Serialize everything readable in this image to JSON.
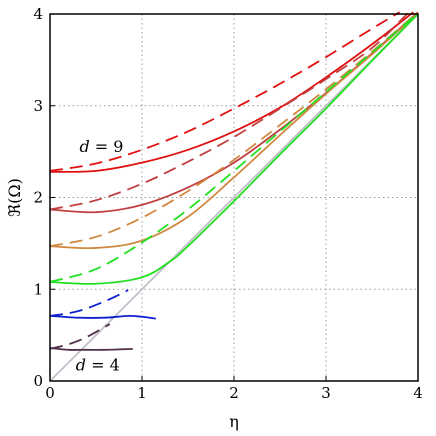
{
  "chart_data": {
    "type": "line",
    "xlabel": "η",
    "ylabel": "ℜ(Ω)",
    "xlim": [
      0,
      4
    ],
    "ylim": [
      0,
      4
    ],
    "xticks": [
      "0",
      "1",
      "2",
      "3",
      "4"
    ],
    "yticks": [
      "0",
      "1",
      "2",
      "3",
      "4"
    ],
    "grid": true,
    "grid_style": "dotted",
    "annotations": [
      {
        "var": "d",
        "eq": " = 9",
        "x": 0.32,
        "y": 2.55
      },
      {
        "var": "d",
        "eq": " = 4",
        "x": 0.28,
        "y": 0.17
      }
    ],
    "series": [
      {
        "color": "#c0c0c8",
        "dash": false,
        "x": [
          0,
          0.5,
          1.0,
          1.5,
          2.0,
          2.5,
          3.0,
          3.5,
          4.0
        ],
        "y": [
          0,
          0.5,
          1.0,
          1.5,
          2.0,
          2.5,
          3.0,
          3.5,
          4.0
        ]
      },
      {
        "color": "#e01010",
        "dash": true,
        "x": [
          0,
          0.5,
          1.0,
          1.5,
          2.0,
          2.5,
          3.0,
          3.5,
          3.8
        ],
        "y": [
          2.29,
          2.37,
          2.52,
          2.72,
          2.97,
          3.24,
          3.53,
          3.84,
          4.02
        ]
      },
      {
        "color": "#e01010",
        "dash": false,
        "x": [
          0,
          0.5,
          1.0,
          1.5,
          2.0,
          2.5,
          3.0,
          3.5,
          3.95
        ],
        "y": [
          2.28,
          2.29,
          2.38,
          2.52,
          2.72,
          2.98,
          3.31,
          3.67,
          4.02
        ]
      },
      {
        "color": "#c04040",
        "dash": true,
        "x": [
          0,
          0.5,
          1.0,
          1.5,
          2.0,
          2.5,
          3.0,
          3.5,
          3.9
        ],
        "y": [
          1.87,
          1.97,
          2.15,
          2.39,
          2.66,
          2.97,
          3.29,
          3.63,
          4.02
        ]
      },
      {
        "color": "#c04040",
        "dash": false,
        "x": [
          0,
          0.5,
          1.0,
          1.5,
          2.0,
          2.5,
          3.0,
          3.5,
          4.0
        ],
        "y": [
          1.87,
          1.84,
          1.92,
          2.11,
          2.38,
          2.74,
          3.14,
          3.57,
          4.02
        ]
      },
      {
        "color": "#d08840",
        "dash": true,
        "x": [
          0,
          0.5,
          1.0,
          1.5,
          2.0,
          2.5,
          3.0,
          3.5,
          4.0
        ],
        "y": [
          1.47,
          1.57,
          1.78,
          2.07,
          2.41,
          2.79,
          3.18,
          3.59,
          4.02
        ]
      },
      {
        "color": "#d08840",
        "dash": false,
        "x": [
          0,
          0.5,
          1.0,
          1.5,
          2.0,
          2.5,
          3.0,
          3.5,
          4.0
        ],
        "y": [
          1.47,
          1.45,
          1.53,
          1.79,
          2.22,
          2.68,
          3.13,
          3.56,
          4.01
        ]
      },
      {
        "color": "#20e020",
        "dash": true,
        "x": [
          0,
          0.5,
          1.0,
          1.5,
          2.0,
          2.5,
          3.0,
          3.5,
          4.0
        ],
        "y": [
          1.08,
          1.22,
          1.51,
          1.87,
          2.29,
          2.72,
          3.15,
          3.58,
          4.01
        ]
      },
      {
        "color": "#20e020",
        "dash": false,
        "x": [
          0,
          0.5,
          1.0,
          1.3,
          1.5,
          2.0,
          2.5,
          3.0,
          3.5,
          4.0
        ],
        "y": [
          1.08,
          1.06,
          1.13,
          1.3,
          1.47,
          1.96,
          2.47,
          2.97,
          3.49,
          4.0
        ]
      },
      {
        "color": "#1020d0",
        "dash": true,
        "x": [
          0,
          0.3,
          0.6,
          0.85
        ],
        "y": [
          0.71,
          0.76,
          0.87,
          0.99
        ]
      },
      {
        "color": "#1020d0",
        "dash": false,
        "x": [
          0,
          0.3,
          0.6,
          0.85,
          1.0,
          1.15
        ],
        "y": [
          0.71,
          0.69,
          0.69,
          0.71,
          0.7,
          0.68
        ]
      },
      {
        "color": "#503048",
        "dash": true,
        "x": [
          0,
          0.2,
          0.4,
          0.65
        ],
        "y": [
          0.35,
          0.4,
          0.48,
          0.62
        ]
      },
      {
        "color": "#503048",
        "dash": false,
        "x": [
          0,
          0.2,
          0.4,
          0.6,
          0.9
        ],
        "y": [
          0.36,
          0.34,
          0.34,
          0.34,
          0.35
        ]
      }
    ]
  }
}
